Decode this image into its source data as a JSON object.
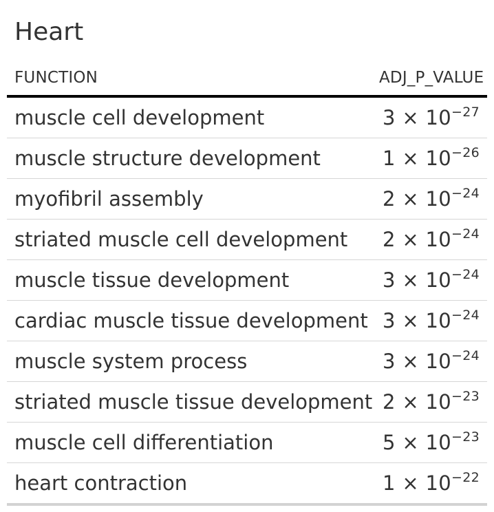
{
  "table": {
    "title": "Heart",
    "columns": {
      "function": "FUNCTION",
      "adj_p_value": "ADJ_P_VALUE"
    },
    "rows": [
      {
        "function": "muscle cell development",
        "mantissa": "3",
        "times": "×",
        "base": "10",
        "exponent": "−27"
      },
      {
        "function": "muscle structure development",
        "mantissa": "1",
        "times": "×",
        "base": "10",
        "exponent": "−26"
      },
      {
        "function": "myofibril assembly",
        "mantissa": "2",
        "times": "×",
        "base": "10",
        "exponent": "−24"
      },
      {
        "function": "striated muscle cell development",
        "mantissa": "2",
        "times": "×",
        "base": "10",
        "exponent": "−24"
      },
      {
        "function": "muscle tissue development",
        "mantissa": "3",
        "times": "×",
        "base": "10",
        "exponent": "−24"
      },
      {
        "function": "cardiac muscle tissue development",
        "mantissa": "3",
        "times": "×",
        "base": "10",
        "exponent": "−24"
      },
      {
        "function": "muscle system process",
        "mantissa": "3",
        "times": "×",
        "base": "10",
        "exponent": "−24"
      },
      {
        "function": "striated muscle tissue development",
        "mantissa": "2",
        "times": "×",
        "base": "10",
        "exponent": "−23"
      },
      {
        "function": "muscle cell differentiation",
        "mantissa": "5",
        "times": "×",
        "base": "10",
        "exponent": "−23"
      },
      {
        "function": "heart contraction",
        "mantissa": "1",
        "times": "×",
        "base": "10",
        "exponent": "−22"
      }
    ]
  }
}
